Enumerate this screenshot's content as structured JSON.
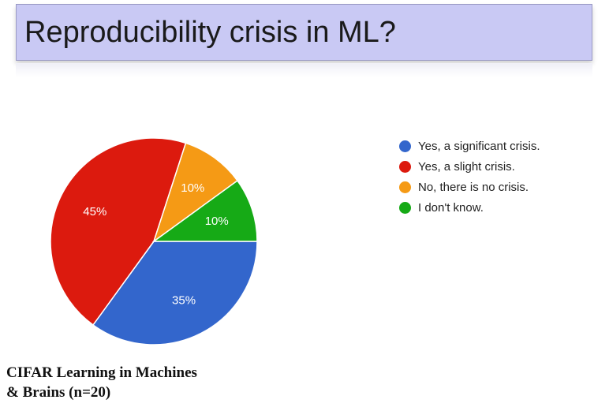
{
  "title": "Reproducibility crisis in ML?",
  "caption": {
    "line1": "CIFAR Learning in Machines",
    "line2": "& Brains (n=20)"
  },
  "chart_data": {
    "type": "pie",
    "categories": [
      "Yes, a significant crisis.",
      "Yes, a slight crisis.",
      "No, there is no crisis.",
      "I don't know."
    ],
    "values": [
      35,
      45,
      10,
      10
    ],
    "labels": [
      "35%",
      "45%",
      "10%",
      "10%"
    ],
    "colors": [
      "#3366cc",
      "#dc1a0e",
      "#f59a15",
      "#16aa16"
    ],
    "legend_position": "right"
  }
}
